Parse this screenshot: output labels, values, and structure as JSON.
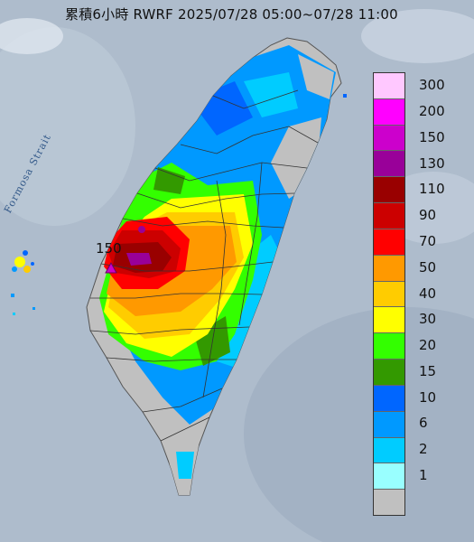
{
  "title": "累積6小時 RWRF 2025/07/28 05:00~07/28 11:00",
  "strait_label": "Formosa Strait",
  "peak": {
    "value": "150"
  },
  "legend": {
    "levels": [
      {
        "label": "300",
        "color": "#ffc8ff"
      },
      {
        "label": "200",
        "color": "#ff00ff"
      },
      {
        "label": "150",
        "color": "#cc00cc"
      },
      {
        "label": "130",
        "color": "#990099"
      },
      {
        "label": "110",
        "color": "#990000"
      },
      {
        "label": "90",
        "color": "#cc0000"
      },
      {
        "label": "70",
        "color": "#ff0000"
      },
      {
        "label": "50",
        "color": "#ff9900"
      },
      {
        "label": "40",
        "color": "#ffcc00"
      },
      {
        "label": "30",
        "color": "#ffff00"
      },
      {
        "label": "20",
        "color": "#33ff00"
      },
      {
        "label": "15",
        "color": "#339900"
      },
      {
        "label": "10",
        "color": "#0066ff"
      },
      {
        "label": "6",
        "color": "#0099ff"
      },
      {
        "label": "2",
        "color": "#00ccff"
      },
      {
        "label": "1",
        "color": "#99ffff"
      },
      {
        "label": "",
        "color": "#c0c0c0"
      }
    ]
  }
}
